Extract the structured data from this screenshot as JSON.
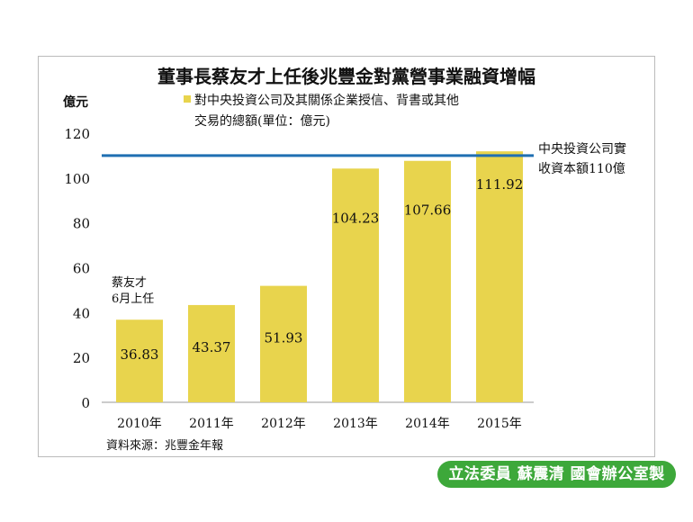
{
  "chart_data": {
    "type": "bar",
    "title": "董事長蔡友才上任後兆豐金對黨營事業融資增幅",
    "ylabel": "億元",
    "legend": [
      "對中央投資公司及其關係企業授信、背書或其他",
      "交易的總額(單位：億元)"
    ],
    "categories": [
      "2010年",
      "2011年",
      "2012年",
      "2013年",
      "2014年",
      "2015年"
    ],
    "values": [
      36.83,
      43.37,
      51.93,
      104.23,
      107.66,
      111.92
    ],
    "value_labels": [
      "36.83",
      "43.37",
      "51.93",
      "104.23",
      "107.66",
      "111.92"
    ],
    "ylim": [
      0,
      120
    ],
    "yticks": [
      0,
      20,
      40,
      60,
      80,
      100,
      120
    ],
    "reference_line": {
      "value": 110,
      "label": [
        "中央投資公司實",
        "收資本額110億"
      ],
      "color": "#1f6fb2"
    },
    "annotation": [
      "蔡友才",
      "6月上任"
    ],
    "source": "資料來源：兆豐金年報",
    "bar_color": "#e8d44d"
  },
  "badge": "立法委員 蘇震清 國會辦公室製"
}
